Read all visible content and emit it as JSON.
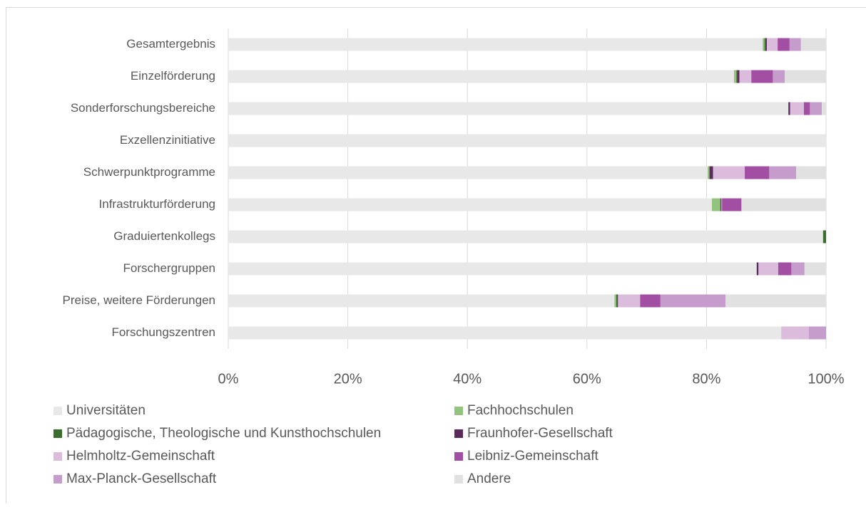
{
  "chart_data": {
    "type": "stacked-bar-horizontal",
    "categories": [
      "Gesamtergebnis",
      "Einzelförderung",
      "Sonderforschungsbereiche",
      "Exzellenzinitiative",
      "Schwerpunktprogramme",
      "Infrastrukturförderung",
      "Graduiertenkollegs",
      "Forschergruppen",
      "Preise, weitere Förderungen",
      "Forschungszentren"
    ],
    "series": [
      {
        "name": "Universitäten",
        "color": "#e8e8e8",
        "values": [
          89.4,
          84.6,
          93.7,
          100,
          80.2,
          80.9,
          99.5,
          88.4,
          64.6,
          92.5
        ]
      },
      {
        "name": "Fachhochschulen",
        "color": "#93c47d",
        "values": [
          0.3,
          0.4,
          0,
          0,
          0.3,
          1.4,
          0,
          0,
          0.3,
          0
        ]
      },
      {
        "name": "Pädagogische, Theologische und Kunsthochschulen",
        "color": "#3b6e2e",
        "values": [
          0.2,
          0.2,
          0,
          0,
          0,
          0.1,
          0.5,
          0,
          0.2,
          0
        ]
      },
      {
        "name": "Fraunhofer-Gesellschaft",
        "color": "#5b2a5c",
        "values": [
          0.2,
          0.3,
          0.3,
          0,
          0.6,
          0.1,
          0,
          0.3,
          0.1,
          0
        ]
      },
      {
        "name": "Helmholtz-Gemeinschaft",
        "color": "#dbbcdc",
        "values": [
          1.8,
          2.0,
          2.3,
          0,
          5.3,
          0.1,
          0,
          3.3,
          3.7,
          4.6
        ]
      },
      {
        "name": "Leibniz-Gemeinschaft",
        "color": "#a24fa3",
        "values": [
          2.0,
          3.6,
          1.0,
          0,
          4.1,
          3.2,
          0,
          2.2,
          3.4,
          0
        ]
      },
      {
        "name": "Max-Planck-Gesellschaft",
        "color": "#c59ccb",
        "values": [
          1.9,
          2.0,
          2.0,
          0,
          4.5,
          0.1,
          0,
          2.2,
          10.9,
          2.9
        ]
      },
      {
        "name": "Andere",
        "color": "#e1e1e1",
        "values": [
          4.2,
          6.9,
          0.7,
          0,
          5.0,
          14.1,
          0,
          3.6,
          16.8,
          0
        ]
      }
    ],
    "xlim": [
      0,
      100
    ],
    "xticks": [
      {
        "value": 0,
        "label": "0%"
      },
      {
        "value": 20,
        "label": "20%"
      },
      {
        "value": 40,
        "label": "40%"
      },
      {
        "value": 60,
        "label": "60%"
      },
      {
        "value": 80,
        "label": "80%"
      },
      {
        "value": 100,
        "label": "100%"
      }
    ],
    "grid": true,
    "legend": "bottom"
  }
}
